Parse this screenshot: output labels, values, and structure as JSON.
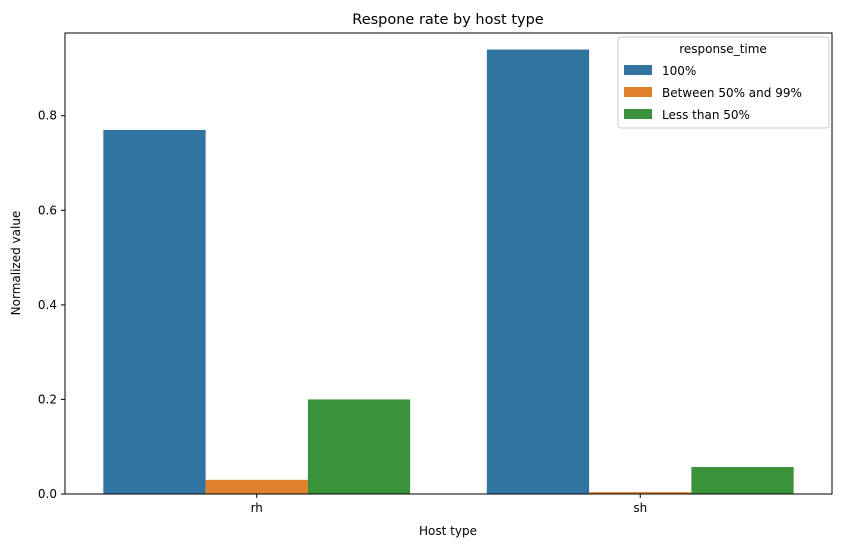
{
  "chart_data": {
    "type": "bar",
    "title": "Respone rate by host type",
    "xlabel": "Host type",
    "ylabel": "Normalized value",
    "categories": [
      "rh",
      "sh"
    ],
    "ylim": [
      0,
      0.975
    ],
    "yticks": [
      0.0,
      0.2,
      0.4,
      0.6,
      0.8
    ],
    "ytick_labels": [
      "0.0",
      "0.2",
      "0.4",
      "0.6",
      "0.8"
    ],
    "grid": false,
    "legend": {
      "title": "response_time",
      "placement": "top-right"
    },
    "series": [
      {
        "name": "100%",
        "color": "#3274a1",
        "values": [
          0.77,
          0.94
        ]
      },
      {
        "name": "Between 50% and 99%",
        "color": "#e1812c",
        "values": [
          0.03,
          0.004
        ]
      },
      {
        "name": "Less than 50%",
        "color": "#3a923a",
        "values": [
          0.2,
          0.057
        ]
      }
    ]
  }
}
